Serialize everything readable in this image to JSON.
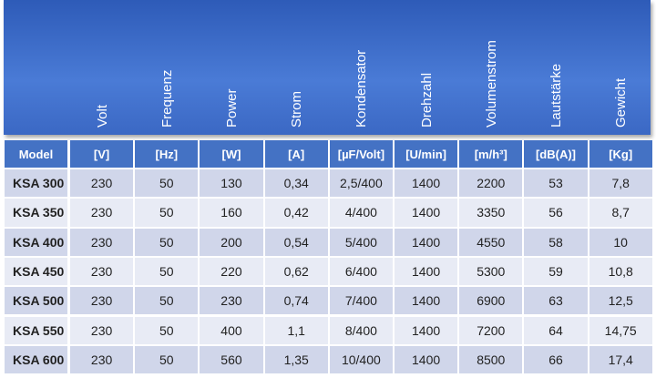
{
  "header": {
    "columns": [
      "Volt",
      "Frequenz",
      "Power",
      "Strom",
      "Kondensator",
      "Drehzahl",
      "Volumenstrom",
      "Lautstärke",
      "Gewicht"
    ]
  },
  "table": {
    "units": [
      "Model",
      "[V]",
      "[Hz]",
      "[W]",
      "[A]",
      "[µF/Volt]",
      "[U/min]",
      "[m/h³]",
      "[dB(A)]",
      "[Kg]"
    ],
    "rows": [
      [
        "KSA 300",
        "230",
        "50",
        "130",
        "0,34",
        "2,5/400",
        "1400",
        "2200",
        "53",
        "7,8"
      ],
      [
        "KSA 350",
        "230",
        "50",
        "160",
        "0,42",
        "4/400",
        "1400",
        "3350",
        "56",
        "8,7"
      ],
      [
        "KSA 400",
        "230",
        "50",
        "200",
        "0,54",
        "5/400",
        "1400",
        "4550",
        "58",
        "10"
      ],
      [
        "KSA 450",
        "230",
        "50",
        "220",
        "0,62",
        "6/400",
        "1400",
        "5300",
        "59",
        "10,8"
      ],
      [
        "KSA 500",
        "230",
        "50",
        "230",
        "0,74",
        "7/400",
        "1400",
        "6900",
        "63",
        "12,5"
      ],
      [
        "KSA 550",
        "230",
        "50",
        "400",
        "1,1",
        "8/400",
        "1400",
        "7200",
        "64",
        "14,75"
      ],
      [
        "KSA 600",
        "230",
        "50",
        "560",
        "1,35",
        "10/400",
        "1400",
        "8500",
        "66",
        "17,4"
      ]
    ]
  }
}
